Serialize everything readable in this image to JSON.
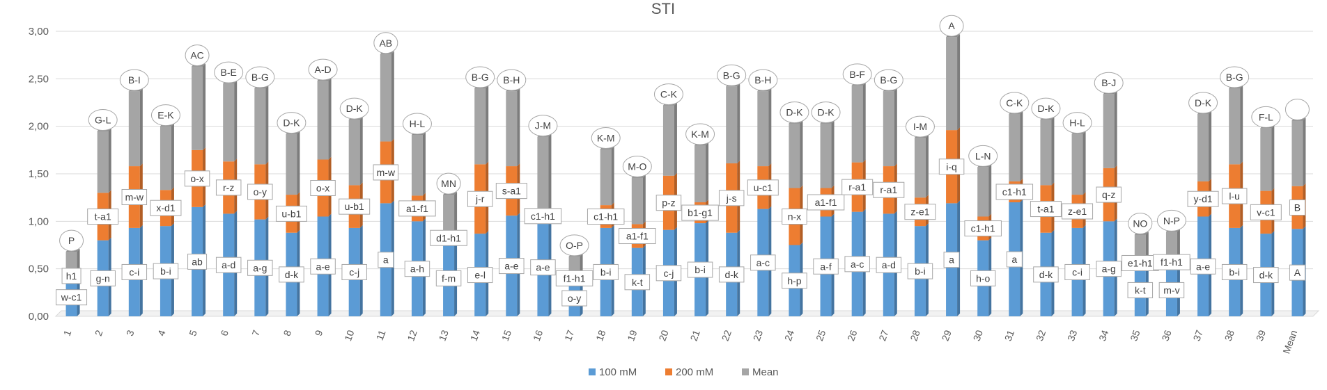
{
  "chart_data": {
    "type": "bar",
    "stacked": true,
    "title": "STI",
    "xlabel": "",
    "ylabel": "",
    "ylim": [
      0,
      3
    ],
    "y_ticks": [
      "0,00",
      "0,50",
      "1,00",
      "1,50",
      "2,00",
      "2,50",
      "3,00"
    ],
    "grid": true,
    "legend_position": "bottom",
    "categories": [
      "1",
      "2",
      "3",
      "4",
      "5",
      "6",
      "7",
      "8",
      "9",
      "10",
      "11",
      "12",
      "13",
      "14",
      "15",
      "16",
      "17",
      "18",
      "19",
      "20",
      "21",
      "22",
      "23",
      "24",
      "25",
      "26",
      "27",
      "28",
      "29",
      "30",
      "31",
      "32",
      "33",
      "34",
      "35",
      "36",
      "37",
      "38",
      "39",
      "Mean"
    ],
    "series": [
      {
        "name": "100 mM",
        "color": "#5b9bd5",
        "values": [
          0.4,
          0.8,
          0.93,
          0.95,
          1.15,
          1.08,
          1.02,
          0.88,
          1.05,
          0.93,
          1.19,
          1.0,
          0.8,
          0.87,
          1.06,
          1.03,
          0.38,
          0.93,
          0.72,
          0.91,
          0.98,
          0.88,
          1.13,
          0.75,
          1.05,
          1.1,
          1.08,
          0.95,
          1.19,
          0.8,
          1.2,
          0.88,
          0.93,
          1.0,
          0.55,
          0.55,
          1.05,
          0.93,
          0.87,
          0.92
        ]
      },
      {
        "name": "200 mM",
        "color": "#ed7d31",
        "values": [
          0.05,
          0.5,
          0.65,
          0.38,
          0.6,
          0.55,
          0.58,
          0.4,
          0.6,
          0.45,
          0.65,
          0.27,
          0.05,
          0.73,
          0.52,
          0.05,
          0.04,
          0.24,
          0.25,
          0.57,
          0.22,
          0.73,
          0.45,
          0.6,
          0.3,
          0.52,
          0.5,
          0.3,
          0.77,
          0.25,
          0.22,
          0.5,
          0.35,
          0.56,
          0.02,
          0.04,
          0.37,
          0.67,
          0.45,
          0.45
        ]
      },
      {
        "name": "Mean",
        "color": "#a5a5a5",
        "values": [
          0.23,
          0.65,
          0.79,
          0.67,
          0.88,
          0.82,
          0.8,
          0.64,
          0.83,
          0.69,
          0.92,
          0.64,
          0.43,
          0.8,
          0.79,
          0.81,
          0.21,
          0.59,
          0.49,
          0.74,
          0.6,
          0.81,
          0.79,
          0.68,
          0.68,
          0.81,
          0.79,
          0.63,
          0.98,
          0.52,
          0.71,
          0.69,
          0.64,
          0.78,
          0.29,
          0.3,
          0.71,
          0.8,
          0.66,
          0.69
        ]
      }
    ],
    "letters_top": [
      "P",
      "G-L",
      "B-I",
      "E-K",
      "AC",
      "B-E",
      "B-G",
      "D-K",
      "A-D",
      "D-K",
      "AB",
      "H-L",
      "MN",
      "B-G",
      "B-H",
      "J-M",
      "O-P",
      "K-M",
      "M-O",
      "C-K",
      "K-M",
      "B-G",
      "B-H",
      "D-K",
      "D-K",
      "B-F",
      "B-G",
      "I-M",
      "A",
      "L-N",
      "C-K",
      "D-K",
      "H-L",
      "B-J",
      "NO",
      "N-P",
      "D-K",
      "B-G",
      "F-L",
      ""
    ],
    "letters_200": [
      "h1",
      "t-a1",
      "m-w",
      "x-d1",
      "o-x",
      "r-z",
      "o-y",
      "u-b1",
      "o-x",
      "u-b1",
      "m-w",
      "a1-f1",
      "d1-h1",
      "j-r",
      "s-a1",
      "c1-h1",
      "f1-h1",
      "c1-h1",
      "a1-f1",
      "p-z",
      "b1-g1",
      "j-s",
      "u-c1",
      "n-x",
      "a1-f1",
      "r-a1",
      "r-a1",
      "z-e1",
      "i-q",
      "c1-h1",
      "c1-h1",
      "t-a1",
      "z-e1",
      "q-z",
      "e1-h1",
      "f1-h1",
      "y-d1",
      "l-u",
      "v-c1",
      "B"
    ],
    "letters_100": [
      "w-c1",
      "g-n",
      "c-i",
      "b-i",
      "ab",
      "a-d",
      "a-g",
      "d-k",
      "a-e",
      "c-j",
      "a",
      "a-h",
      "f-m",
      "e-l",
      "a-e",
      "a-e",
      "o-y",
      "b-i",
      "k-t",
      "c-j",
      "b-i",
      "d-k",
      "a-c",
      "h-p",
      "a-f",
      "a-c",
      "a-d",
      "b-i",
      "a",
      "h-o",
      "a",
      "d-k",
      "c-i",
      "a-g",
      "k-t",
      "m-v",
      "a-e",
      "b-i",
      "d-k",
      "A"
    ]
  }
}
